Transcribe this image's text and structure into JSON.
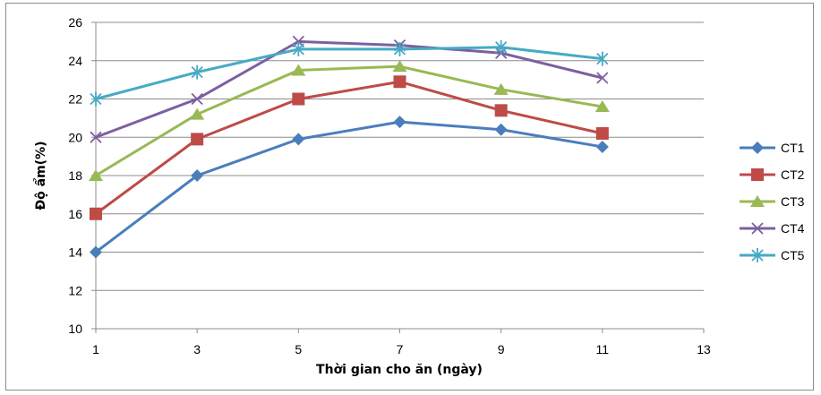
{
  "chart_data": {
    "type": "line",
    "title": "",
    "xlabel": "Thời gian cho ăn (ngày)",
    "ylabel": "Độ ẩm(%)",
    "xlim": [
      1,
      13
    ],
    "ylim": [
      10,
      26
    ],
    "xticks": [
      1,
      3,
      5,
      7,
      9,
      11,
      13
    ],
    "yticks": [
      10,
      12,
      14,
      16,
      18,
      20,
      22,
      24,
      26
    ],
    "grid": "horizontal",
    "legend": "right",
    "x": [
      1,
      3,
      5,
      7,
      9,
      11
    ],
    "series": [
      {
        "name": "CT1",
        "color": "#4a7ebb",
        "marker": "diamond",
        "values": [
          14.0,
          18.0,
          19.9,
          20.8,
          20.4,
          19.5
        ]
      },
      {
        "name": "CT2",
        "color": "#be4b48",
        "marker": "square",
        "values": [
          16.0,
          19.9,
          22.0,
          22.9,
          21.4,
          20.2
        ]
      },
      {
        "name": "CT3",
        "color": "#98b954",
        "marker": "triangle",
        "values": [
          18.0,
          21.2,
          23.5,
          23.7,
          22.5,
          21.6
        ]
      },
      {
        "name": "CT4",
        "color": "#7d5fa0",
        "marker": "x",
        "values": [
          20.0,
          22.0,
          25.0,
          24.8,
          24.4,
          23.1
        ]
      },
      {
        "name": "CT5",
        "color": "#46aac5",
        "marker": "star",
        "values": [
          22.0,
          23.4,
          24.6,
          24.6,
          24.7,
          24.1
        ]
      }
    ]
  }
}
